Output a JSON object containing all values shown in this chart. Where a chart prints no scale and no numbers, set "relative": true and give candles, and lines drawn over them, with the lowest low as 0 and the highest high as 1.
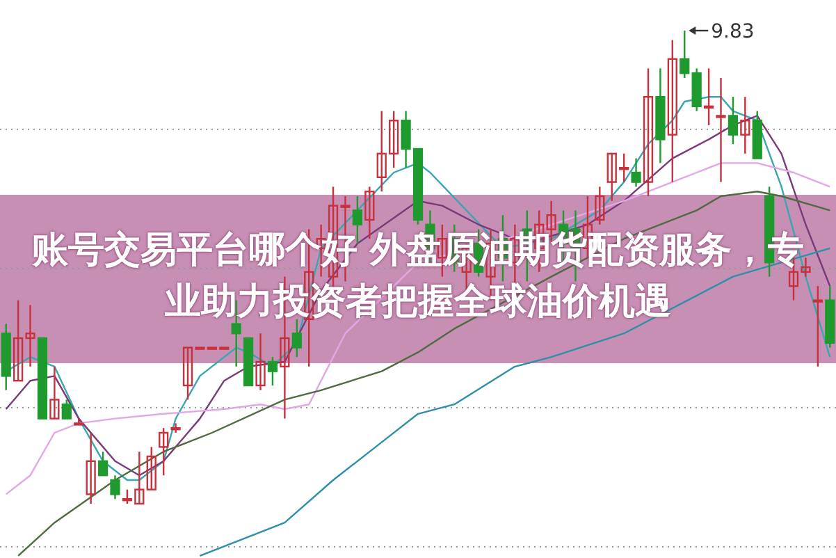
{
  "chart_data": {
    "type": "candlestick",
    "title": "账号交易平台哪个好 外盘原油期货配资服务，专业助力投资者把握全球油价机遇",
    "relative": true,
    "grid": "y",
    "categories": [
      null,
      null,
      null,
      null,
      null,
      null,
      null,
      null,
      null,
      null,
      null,
      null,
      null,
      null,
      null,
      null,
      null,
      null,
      null,
      null,
      null,
      null,
      null,
      null,
      null,
      null,
      null,
      null,
      null,
      null,
      null,
      null,
      null,
      null,
      null,
      null,
      null,
      null,
      null,
      null,
      null,
      null,
      null,
      null,
      null,
      null,
      null,
      null,
      null,
      null,
      null,
      null,
      null,
      null,
      null,
      null,
      null,
      null,
      null,
      null,
      null,
      null,
      null,
      null,
      null,
      null,
      null,
      null,
      null
    ],
    "ohlc": [
      [
        0.36,
        0.38,
        0.24,
        0.27
      ],
      [
        0.26,
        0.43,
        0.26,
        0.35
      ],
      [
        0.35,
        0.42,
        0.29,
        0.36
      ],
      [
        0.35,
        0.35,
        0.18,
        0.18
      ],
      [
        0.18,
        0.29,
        0.18,
        0.22
      ],
      [
        0.21,
        0.22,
        0.18,
        0.18
      ],
      [
        0.17,
        0.18,
        0.17,
        0.17
      ],
      [
        0.02,
        0.15,
        0,
        0.09
      ],
      [
        0.09,
        0.11,
        0.06,
        0.06
      ],
      [
        0.05,
        0.06,
        0.01,
        0.02
      ],
      [
        0.01,
        0.03,
        0.0,
        0.01
      ],
      [
        0,
        0.11,
        0,
        0.03
      ],
      [
        0.03,
        0.12,
        0.03,
        0.1
      ],
      [
        0.12,
        0.16,
        0.06,
        0.15
      ],
      [
        0.16,
        0.17,
        0.15,
        0.16
      ],
      [
        0.25,
        0.33,
        0.22,
        0.33
      ],
      [
        0.33,
        0.33,
        0.33,
        0.33
      ],
      [
        0.33,
        0.33,
        0.33,
        0.33
      ],
      [
        0.33,
        0.33,
        0.33,
        0.33
      ],
      [
        0.38,
        0.43,
        0.29,
        0.36
      ],
      [
        0.35,
        0.35,
        0.25,
        0.25
      ],
      [
        0.25,
        0.36,
        0.24,
        0.3
      ],
      [
        0.3,
        0.31,
        0.25,
        0.28
      ],
      [
        0.29,
        0.48,
        0.18,
        0.35
      ],
      [
        0.36,
        0.39,
        0.31,
        0.33
      ],
      [
        0.39,
        0.58,
        0.29,
        0.49
      ],
      [
        0.54,
        0.59,
        0.48,
        0.56
      ],
      [
        0.48,
        0.67,
        0.45,
        0.63
      ],
      [
        0.63,
        0.65,
        0.47,
        0.63
      ],
      [
        0.62,
        0.65,
        0.55,
        0.59
      ],
      [
        0.6,
        0.67,
        0.56,
        0.66
      ],
      [
        0.69,
        0.83,
        0.66,
        0.74
      ],
      [
        0.74,
        0.83,
        0.71,
        0.81
      ],
      [
        0.81,
        0.83,
        0.71,
        0.75
      ],
      [
        0.75,
        0.75,
        0.59,
        0.6
      ],
      [
        0.59,
        0.62,
        0.51,
        0.54
      ],
      [
        0.52,
        0.59,
        0.48,
        0.56
      ],
      [
        0.56,
        0.59,
        0.49,
        0.51
      ],
      [
        0.49,
        0.55,
        0.45,
        0.54
      ],
      [
        0.55,
        0.58,
        0.48,
        0.49
      ],
      [
        0.48,
        0.58,
        0.43,
        0.55
      ],
      [
        0.56,
        0.61,
        0.47,
        0.52
      ],
      [
        0.51,
        0.59,
        0.46,
        0.56
      ],
      [
        0.58,
        0.62,
        0.47,
        0.55
      ],
      [
        0.54,
        0.62,
        0.49,
        0.59
      ],
      [
        0.58,
        0.64,
        0.55,
        0.61
      ],
      [
        0.59,
        0.62,
        0.51,
        0.55
      ],
      [
        0.58,
        0.62,
        0.47,
        0.54
      ],
      [
        0.54,
        0.65,
        0.52,
        0.59
      ],
      [
        0.6,
        0.67,
        0.59,
        0.65
      ],
      [
        0.68,
        0.74,
        0.64,
        0.74
      ],
      [
        0.71,
        0.74,
        0.68,
        0.71
      ],
      [
        0.7,
        0.73,
        0.67,
        0.68
      ],
      [
        0.68,
        0.92,
        0.65,
        0.86
      ],
      [
        0.86,
        0.92,
        0.72,
        0.77
      ],
      [
        0.78,
        0.98,
        0.68,
        0.94
      ],
      [
        0.94,
        1.0,
        0.9,
        0.91
      ],
      [
        0.91,
        0.92,
        0.83,
        0.84
      ],
      [
        0.84,
        0.92,
        0.8,
        0.84
      ],
      [
        0.82,
        0.9,
        0.68,
        0.82
      ],
      [
        0.82,
        0.86,
        0.76,
        0.78
      ],
      [
        0.78,
        0.86,
        0.74,
        0.81
      ],
      [
        0.81,
        0.83,
        0.73,
        0.73
      ],
      [
        0.65,
        0.67,
        0.48,
        0.51
      ],
      null,
      [
        0.46,
        0.52,
        0.43,
        0.49
      ],
      [
        0.49,
        0.52,
        0.48,
        0.5
      ],
      [
        0.43,
        0.46,
        0.29,
        0.43
      ],
      [
        0.43,
        0.46,
        0.33,
        0.34
      ]
    ],
    "series": [
      {
        "type": "line",
        "color": "#3aa6b0",
        "values": [
          0.28,
          null,
          0.31,
          null,
          0.29,
          null,
          0.18,
          null,
          0.09,
          null,
          0.05,
          0.05,
          null,
          0.09,
          0.18,
          null,
          0.27,
          null,
          null,
          0.33,
          0.32,
          null,
          0.29,
          null,
          0.34,
          null,
          0.54,
          null,
          null,
          0.62,
          null,
          null,
          0.7,
          null,
          0.72,
          0.7,
          null,
          null,
          null,
          null,
          null,
          0.54,
          null,
          null,
          null,
          0.56,
          null,
          null,
          null,
          0.62,
          null,
          0.68,
          null,
          0.76,
          null,
          0.81,
          0.85,
          null,
          0.86,
          0.86,
          0.83,
          null,
          0.81,
          null,
          0.67,
          null,
          0.48,
          null,
          0.31
        ]
      },
      {
        "type": "line",
        "color": "#7a3a7a",
        "values": [
          0.2,
          null,
          0.26,
          null,
          0.27,
          null,
          0.18,
          null,
          null,
          0.09,
          null,
          0.06,
          null,
          0.09,
          null,
          null,
          0.18,
          null,
          0.26,
          null,
          0.29,
          null,
          null,
          0.3,
          null,
          null,
          0.45,
          null,
          null,
          0.55,
          null,
          null,
          null,
          null,
          0.64,
          null,
          0.63,
          null,
          null,
          0.59,
          null,
          null,
          null,
          0.55,
          null,
          null,
          null,
          null,
          0.59,
          null,
          null,
          0.64,
          null,
          null,
          null,
          0.73,
          null,
          null,
          0.77,
          null,
          0.8,
          null,
          0.82,
          null,
          0.74,
          null,
          0.59,
          null,
          0.46
        ]
      },
      {
        "type": "line",
        "color": "#e2a6e6",
        "values": [
          0.02,
          null,
          0.06,
          null,
          0.15,
          null,
          0.17,
          null,
          null,
          0.18,
          null,
          null,
          null,
          0.19,
          null,
          null,
          null,
          null,
          0.2,
          null,
          null,
          0.21,
          null,
          0.2,
          null,
          0.21,
          null,
          null,
          0.36,
          null,
          null,
          null,
          null,
          null,
          0.51,
          null,
          null,
          null,
          null,
          null,
          0.55,
          null,
          null,
          null,
          null,
          0.59,
          null,
          null,
          null,
          null,
          null,
          0.64,
          null,
          null,
          null,
          null,
          null,
          0.7,
          null,
          0.72,
          null,
          null,
          0.72,
          null,
          null,
          0.7,
          null,
          null,
          0.67
        ]
      },
      {
        "type": "line",
        "color": "#4f6b3f",
        "values": [
          null,
          -0.11,
          null,
          null,
          -0.04,
          null,
          null,
          null,
          null,
          0.05,
          null,
          null,
          null,
          0.11,
          null,
          null,
          null,
          0.15,
          null,
          null,
          null,
          null,
          null,
          0.22,
          null,
          null,
          0.24,
          null,
          null,
          null,
          null,
          0.28,
          null,
          null,
          0.32,
          null,
          null,
          0.37,
          null,
          null,
          null,
          null,
          null,
          null,
          null,
          0.48,
          null,
          null,
          null,
          null,
          null,
          0.56,
          null,
          null,
          null,
          null,
          null,
          0.62,
          null,
          0.65,
          null,
          null,
          0.66,
          null,
          0.65,
          null,
          null,
          null,
          0.62
        ]
      },
      {
        "type": "line",
        "color": "#2e8fa8",
        "values": [
          null,
          null,
          null,
          null,
          null,
          null,
          null,
          null,
          null,
          null,
          null,
          null,
          null,
          null,
          null,
          null,
          -0.11,
          null,
          null,
          null,
          null,
          null,
          null,
          -0.04,
          null,
          null,
          null,
          0.05,
          null,
          null,
          null,
          0.13,
          null,
          null,
          0.19,
          null,
          null,
          0.21,
          null,
          null,
          null,
          null,
          0.29,
          null,
          null,
          0.31,
          null,
          null,
          null,
          null,
          null,
          0.36,
          null,
          null,
          null,
          null,
          null,
          null,
          null,
          null,
          0.48,
          null,
          null,
          null,
          null,
          null,
          null,
          null,
          0.54
        ]
      }
    ],
    "annotations": [
      "9.83"
    ]
  }
}
